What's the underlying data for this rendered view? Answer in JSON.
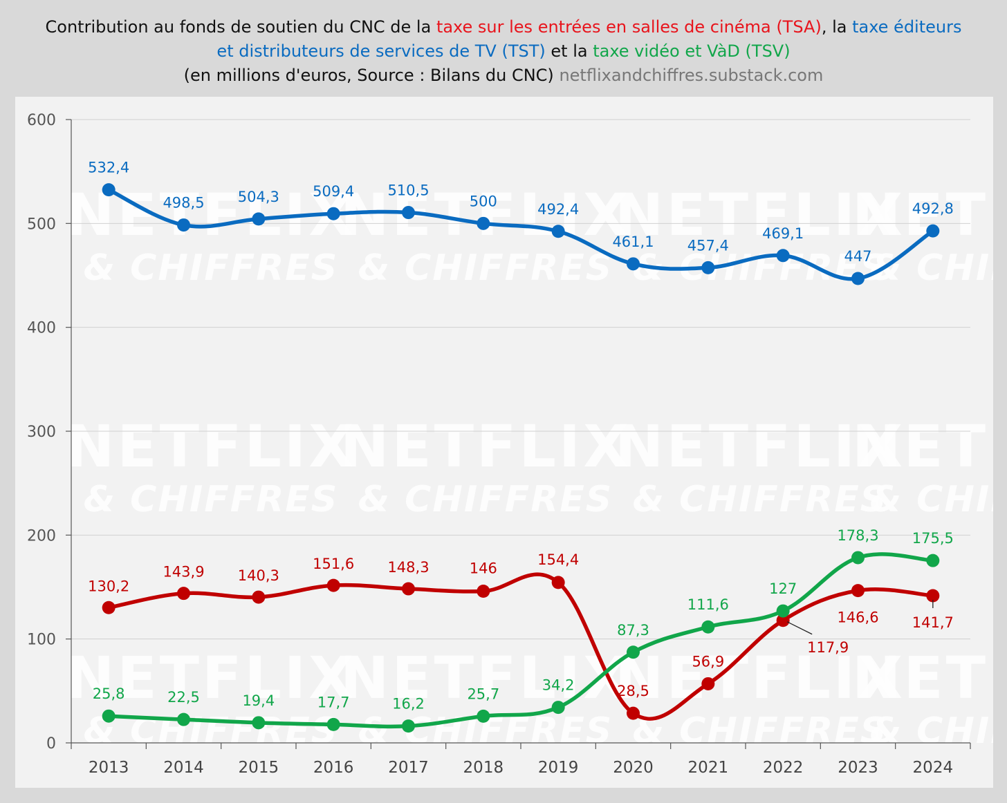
{
  "title": {
    "line1_prefix": "Contribution au fonds de soutien du CNC de la ",
    "line1_tsa": "taxe sur les entrées en salles de cinéma (TSA)",
    "line1_mid": ", la ",
    "line1_tst": "taxe éditeurs",
    "line2_tst": "et distributeurs de services de TV (TST)",
    "line2_mid": " et la ",
    "line2_tsv": "taxe vidéo et VàD (TSV)",
    "line3_text": "(en millions d'euros, Source : Bilans du CNC) ",
    "line3_source": "netflixandchiffres.substack.com"
  },
  "watermark": {
    "line1": "NETFLIX",
    "line2": "& CHIFFRES"
  },
  "colors": {
    "tst": "#0a6bc0",
    "tsa": "#c00000",
    "tsv": "#11a64a",
    "axis": "#555555",
    "grid": "#d0d0d0"
  },
  "chart_data": {
    "type": "line",
    "categories": [
      "2013",
      "2014",
      "2015",
      "2016",
      "2017",
      "2018",
      "2019",
      "2020",
      "2021",
      "2022",
      "2023",
      "2024"
    ],
    "ylim": [
      0,
      600
    ],
    "yticks": [
      "0",
      "100",
      "200",
      "300",
      "400",
      "500",
      "600"
    ],
    "grid": true,
    "series": [
      {
        "key": "tst",
        "values": [
          532.4,
          498.5,
          504.3,
          509.4,
          510.5,
          500,
          492.4,
          461.1,
          457.4,
          469.1,
          447,
          492.8
        ],
        "labels": [
          "532,4",
          "498,5",
          "504,3",
          "509,4",
          "510,5",
          "500",
          "492,4",
          "461,1",
          "457,4",
          "469,1",
          "447",
          "492,8"
        ]
      },
      {
        "key": "tsa",
        "values": [
          130.2,
          143.9,
          140.3,
          151.6,
          148.3,
          146,
          154.4,
          28.5,
          56.9,
          117.9,
          146.6,
          141.7
        ],
        "labels": [
          "130,2",
          "143,9",
          "140,3",
          "151,6",
          "148,3",
          "146",
          "154,4",
          "28,5",
          "56,9",
          "117,9",
          "146,6",
          "141,7"
        ]
      },
      {
        "key": "tsv",
        "values": [
          25.8,
          22.5,
          19.4,
          17.7,
          16.2,
          25.7,
          34.2,
          87.3,
          111.6,
          127,
          178.3,
          175.5
        ],
        "labels": [
          "25,8",
          "22,5",
          "19,4",
          "17,7",
          "16,2",
          "25,7",
          "34,2",
          "87,3",
          "111,6",
          "127",
          "178,3",
          "175,5"
        ]
      }
    ]
  }
}
